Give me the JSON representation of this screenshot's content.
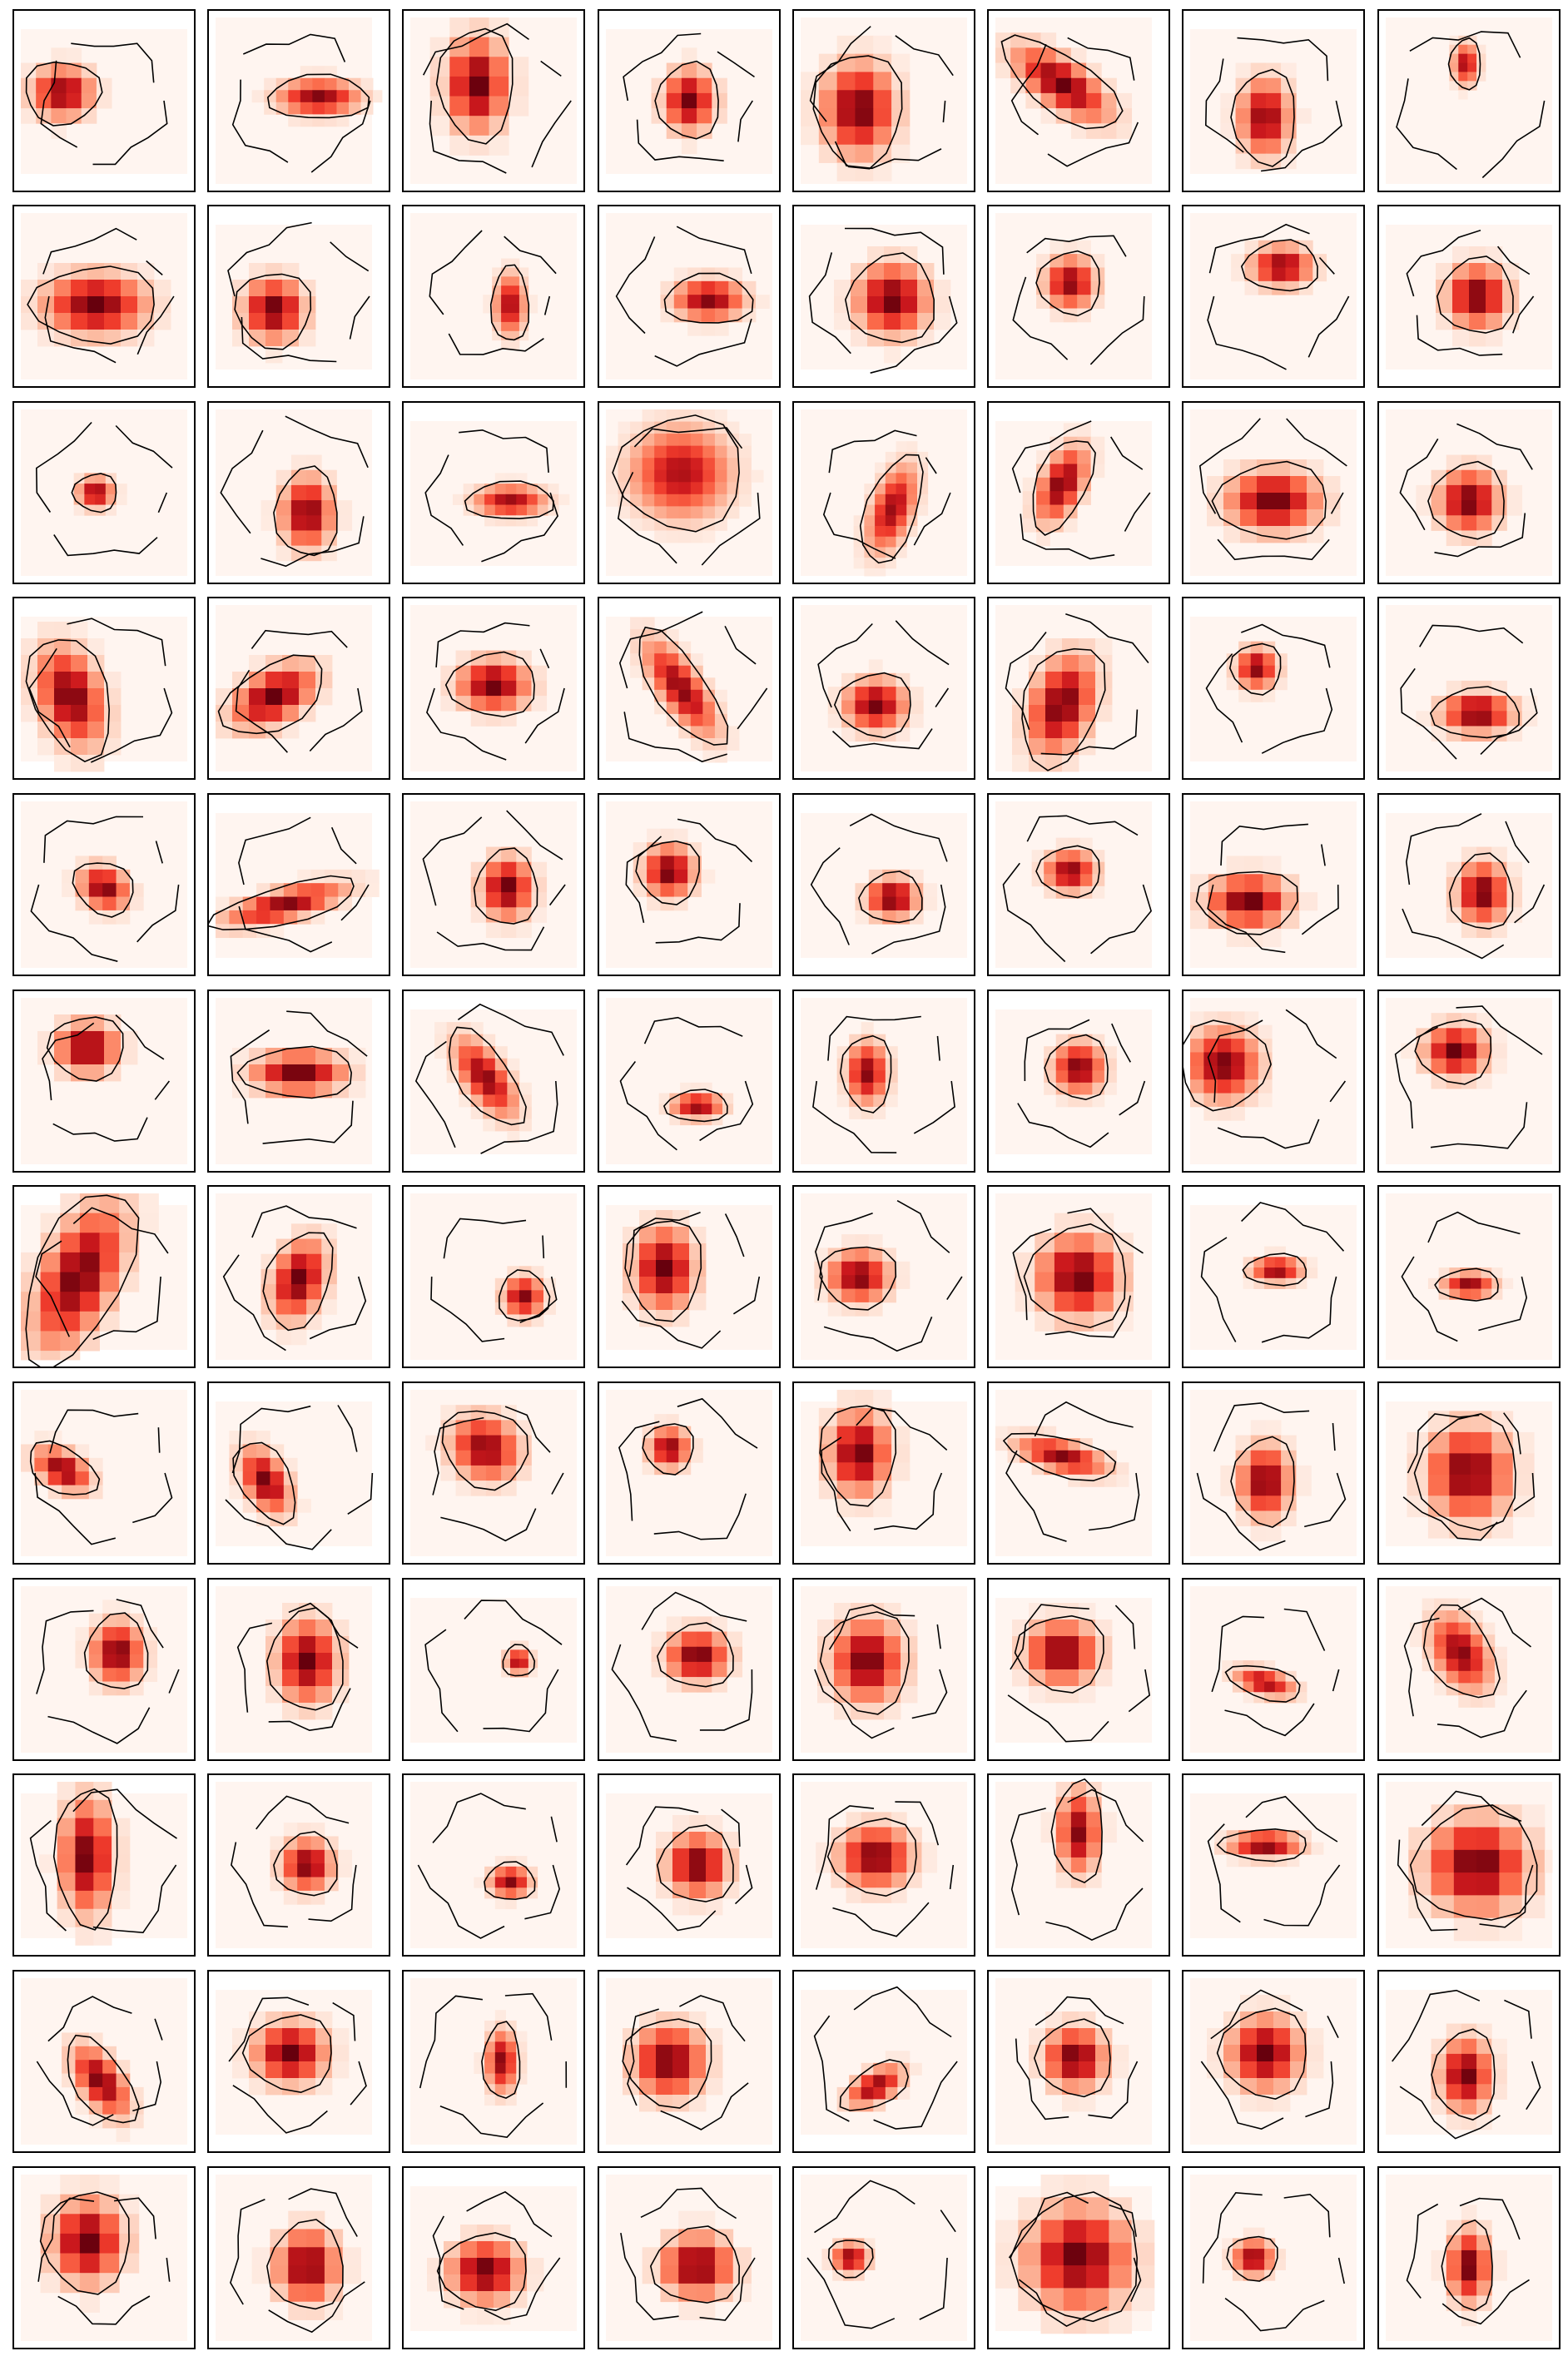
{
  "chart_data": {
    "type": "heatmap",
    "layout": {
      "rows": 12,
      "cols": 8
    },
    "title": "",
    "xlabel": "",
    "ylabel": "",
    "colormap": "Reds",
    "contour_color": "#000000",
    "ticks": "none",
    "panels": [
      {
        "cx": 0.25,
        "cy": 0.45,
        "sx": 0.12,
        "sy": 0.1,
        "angle": 0,
        "peak": 0.95,
        "zoom": 1.0
      },
      {
        "cx": 0.62,
        "cy": 0.48,
        "sx": 0.16,
        "sy": 0.07,
        "angle": 0,
        "peak": 0.95,
        "zoom": 0.8
      },
      {
        "cx": 0.4,
        "cy": 0.4,
        "sx": 0.12,
        "sy": 0.18,
        "angle": 0,
        "peak": 1.0,
        "zoom": 1.3
      },
      {
        "cx": 0.5,
        "cy": 0.5,
        "sx": 0.1,
        "sy": 0.12,
        "angle": 0,
        "peak": 0.98,
        "zoom": 1.0
      },
      {
        "cx": 0.35,
        "cy": 0.55,
        "sx": 0.14,
        "sy": 0.18,
        "angle": 0,
        "peak": 1.0,
        "zoom": 1.2
      },
      {
        "cx": 0.4,
        "cy": 0.4,
        "sx": 0.22,
        "sy": 0.09,
        "angle": 35,
        "peak": 1.0,
        "zoom": 1.0
      },
      {
        "cx": 0.45,
        "cy": 0.6,
        "sx": 0.1,
        "sy": 0.15,
        "angle": 0,
        "peak": 0.95,
        "zoom": 1.0
      },
      {
        "cx": 0.48,
        "cy": 0.28,
        "sx": 0.05,
        "sy": 0.08,
        "angle": 0,
        "peak": 0.9,
        "zoom": 0.6
      },
      {
        "cx": 0.45,
        "cy": 0.55,
        "sx": 0.2,
        "sy": 0.12,
        "angle": 0,
        "peak": 1.0,
        "zoom": 1.1
      },
      {
        "cx": 0.35,
        "cy": 0.58,
        "sx": 0.12,
        "sy": 0.12,
        "angle": 0,
        "peak": 1.0,
        "zoom": 1.1
      },
      {
        "cx": 0.6,
        "cy": 0.55,
        "sx": 0.06,
        "sy": 0.12,
        "angle": 0,
        "peak": 0.9,
        "zoom": 0.6
      },
      {
        "cx": 0.62,
        "cy": 0.52,
        "sx": 0.14,
        "sy": 0.08,
        "angle": 0,
        "peak": 0.95,
        "zoom": 0.9
      },
      {
        "cx": 0.55,
        "cy": 0.52,
        "sx": 0.14,
        "sy": 0.14,
        "angle": 0,
        "peak": 1.0,
        "zoom": 1.1
      },
      {
        "cx": 0.45,
        "cy": 0.42,
        "sx": 0.1,
        "sy": 0.1,
        "angle": 0,
        "peak": 0.95,
        "zoom": 0.9
      },
      {
        "cx": 0.55,
        "cy": 0.32,
        "sx": 0.12,
        "sy": 0.08,
        "angle": 0,
        "peak": 0.95,
        "zoom": 0.9
      },
      {
        "cx": 0.55,
        "cy": 0.5,
        "sx": 0.12,
        "sy": 0.12,
        "angle": 0,
        "peak": 1.0,
        "zoom": 1.1
      },
      {
        "cx": 0.45,
        "cy": 0.5,
        "sx": 0.07,
        "sy": 0.06,
        "angle": 0,
        "peak": 0.95,
        "zoom": 0.7
      },
      {
        "cx": 0.55,
        "cy": 0.62,
        "sx": 0.1,
        "sy": 0.14,
        "angle": 0,
        "peak": 0.98,
        "zoom": 1.0
      },
      {
        "cx": 0.6,
        "cy": 0.55,
        "sx": 0.14,
        "sy": 0.06,
        "angle": 0,
        "peak": 0.9,
        "zoom": 0.7
      },
      {
        "cx": 0.45,
        "cy": 0.38,
        "sx": 0.2,
        "sy": 0.18,
        "angle": 0,
        "peak": 0.85,
        "zoom": 0.8
      },
      {
        "cx": 0.55,
        "cy": 0.6,
        "sx": 0.08,
        "sy": 0.18,
        "angle": 20,
        "peak": 0.9,
        "zoom": 0.7
      },
      {
        "cx": 0.4,
        "cy": 0.45,
        "sx": 0.08,
        "sy": 0.16,
        "angle": 25,
        "peak": 0.98,
        "zoom": 0.9
      },
      {
        "cx": 0.5,
        "cy": 0.55,
        "sx": 0.18,
        "sy": 0.12,
        "angle": 0,
        "peak": 1.0,
        "zoom": 1.1
      },
      {
        "cx": 0.5,
        "cy": 0.55,
        "sx": 0.12,
        "sy": 0.12,
        "angle": 0,
        "peak": 1.0,
        "zoom": 1.0
      },
      {
        "cx": 0.3,
        "cy": 0.55,
        "sx": 0.12,
        "sy": 0.2,
        "angle": -20,
        "peak": 1.0,
        "zoom": 1.1
      },
      {
        "cx": 0.35,
        "cy": 0.55,
        "sx": 0.18,
        "sy": 0.1,
        "angle": -30,
        "peak": 1.0,
        "zoom": 1.1
      },
      {
        "cx": 0.5,
        "cy": 0.48,
        "sx": 0.14,
        "sy": 0.1,
        "angle": 0,
        "peak": 1.0,
        "zoom": 1.0
      },
      {
        "cx": 0.45,
        "cy": 0.5,
        "sx": 0.08,
        "sy": 0.22,
        "angle": -35,
        "peak": 0.95,
        "zoom": 0.8
      },
      {
        "cx": 0.45,
        "cy": 0.6,
        "sx": 0.12,
        "sy": 0.1,
        "angle": 0,
        "peak": 0.98,
        "zoom": 0.9
      },
      {
        "cx": 0.4,
        "cy": 0.6,
        "sx": 0.12,
        "sy": 0.2,
        "angle": 20,
        "peak": 1.0,
        "zoom": 1.1
      },
      {
        "cx": 0.4,
        "cy": 0.38,
        "sx": 0.08,
        "sy": 0.08,
        "angle": 0,
        "peak": 0.95,
        "zoom": 0.8
      },
      {
        "cx": 0.55,
        "cy": 0.65,
        "sx": 0.14,
        "sy": 0.08,
        "angle": 0,
        "peak": 1.0,
        "zoom": 1.0
      },
      {
        "cx": 0.5,
        "cy": 0.52,
        "sx": 0.1,
        "sy": 0.08,
        "angle": 30,
        "peak": 0.98,
        "zoom": 0.9
      },
      {
        "cx": 0.42,
        "cy": 0.62,
        "sx": 0.24,
        "sy": 0.06,
        "angle": -15,
        "peak": 0.95,
        "zoom": 0.9
      },
      {
        "cx": 0.58,
        "cy": 0.52,
        "sx": 0.1,
        "sy": 0.12,
        "angle": 0,
        "peak": 1.0,
        "zoom": 1.0
      },
      {
        "cx": 0.38,
        "cy": 0.42,
        "sx": 0.1,
        "sy": 0.1,
        "angle": 0,
        "peak": 1.0,
        "zoom": 0.9
      },
      {
        "cx": 0.55,
        "cy": 0.58,
        "sx": 0.1,
        "sy": 0.08,
        "angle": 0,
        "peak": 1.0,
        "zoom": 0.9
      },
      {
        "cx": 0.45,
        "cy": 0.42,
        "sx": 0.1,
        "sy": 0.08,
        "angle": 0,
        "peak": 0.95,
        "zoom": 0.8
      },
      {
        "cx": 0.35,
        "cy": 0.6,
        "sx": 0.16,
        "sy": 0.1,
        "angle": 0,
        "peak": 1.0,
        "zoom": 1.2
      },
      {
        "cx": 0.58,
        "cy": 0.55,
        "sx": 0.1,
        "sy": 0.12,
        "angle": 0,
        "peak": 1.0,
        "zoom": 1.0
      },
      {
        "cx": 0.4,
        "cy": 0.3,
        "sx": 0.12,
        "sy": 0.1,
        "angle": 0,
        "peak": 1.0,
        "zoom": 1.1
      },
      {
        "cx": 0.5,
        "cy": 0.45,
        "sx": 0.18,
        "sy": 0.08,
        "angle": 0,
        "peak": 1.0,
        "zoom": 1.1
      },
      {
        "cx": 0.45,
        "cy": 0.48,
        "sx": 0.08,
        "sy": 0.18,
        "angle": -35,
        "peak": 0.95,
        "zoom": 0.8
      },
      {
        "cx": 0.55,
        "cy": 0.65,
        "sx": 0.1,
        "sy": 0.05,
        "angle": 0,
        "peak": 0.95,
        "zoom": 0.7
      },
      {
        "cx": 0.4,
        "cy": 0.45,
        "sx": 0.08,
        "sy": 0.12,
        "angle": 0,
        "peak": 0.95,
        "zoom": 0.8
      },
      {
        "cx": 0.5,
        "cy": 0.42,
        "sx": 0.1,
        "sy": 0.1,
        "angle": 0,
        "peak": 0.98,
        "zoom": 0.8
      },
      {
        "cx": 0.2,
        "cy": 0.4,
        "sx": 0.14,
        "sy": 0.14,
        "angle": 0,
        "peak": 0.98,
        "zoom": 0.9
      },
      {
        "cx": 0.42,
        "cy": 0.32,
        "sx": 0.12,
        "sy": 0.1,
        "angle": 0,
        "peak": 1.0,
        "zoom": 1.0
      },
      {
        "cx": 0.35,
        "cy": 0.5,
        "sx": 0.14,
        "sy": 0.3,
        "angle": 25,
        "peak": 1.0,
        "zoom": 1.3
      },
      {
        "cx": 0.5,
        "cy": 0.52,
        "sx": 0.1,
        "sy": 0.16,
        "angle": 20,
        "peak": 1.0,
        "zoom": 1.0
      },
      {
        "cx": 0.68,
        "cy": 0.62,
        "sx": 0.08,
        "sy": 0.08,
        "angle": 0,
        "peak": 0.95,
        "zoom": 0.8
      },
      {
        "cx": 0.35,
        "cy": 0.45,
        "sx": 0.12,
        "sy": 0.16,
        "angle": 0,
        "peak": 1.0,
        "zoom": 1.1
      },
      {
        "cx": 0.35,
        "cy": 0.5,
        "sx": 0.12,
        "sy": 0.1,
        "angle": 0,
        "peak": 0.98,
        "zoom": 0.9
      },
      {
        "cx": 0.5,
        "cy": 0.5,
        "sx": 0.16,
        "sy": 0.16,
        "angle": 0,
        "peak": 1.0,
        "zoom": 1.3
      },
      {
        "cx": 0.52,
        "cy": 0.46,
        "sx": 0.1,
        "sy": 0.05,
        "angle": 0,
        "peak": 0.95,
        "zoom": 0.7
      },
      {
        "cx": 0.5,
        "cy": 0.55,
        "sx": 0.1,
        "sy": 0.05,
        "angle": 0,
        "peak": 0.95,
        "zoom": 0.7
      },
      {
        "cx": 0.25,
        "cy": 0.48,
        "sx": 0.12,
        "sy": 0.07,
        "angle": 30,
        "peak": 0.98,
        "zoom": 0.9
      },
      {
        "cx": 0.3,
        "cy": 0.55,
        "sx": 0.08,
        "sy": 0.14,
        "angle": -30,
        "peak": 0.98,
        "zoom": 0.9
      },
      {
        "cx": 0.45,
        "cy": 0.35,
        "sx": 0.14,
        "sy": 0.12,
        "angle": 30,
        "peak": 0.95,
        "zoom": 1.0
      },
      {
        "cx": 0.38,
        "cy": 0.35,
        "sx": 0.08,
        "sy": 0.08,
        "angle": 0,
        "peak": 0.95,
        "zoom": 0.8
      },
      {
        "cx": 0.35,
        "cy": 0.38,
        "sx": 0.12,
        "sy": 0.16,
        "angle": 0,
        "peak": 1.0,
        "zoom": 1.2
      },
      {
        "cx": 0.4,
        "cy": 0.4,
        "sx": 0.18,
        "sy": 0.06,
        "angle": 15,
        "peak": 0.95,
        "zoom": 0.8
      },
      {
        "cx": 0.45,
        "cy": 0.55,
        "sx": 0.1,
        "sy": 0.14,
        "angle": 0,
        "peak": 1.0,
        "zoom": 1.0
      },
      {
        "cx": 0.5,
        "cy": 0.5,
        "sx": 0.16,
        "sy": 0.18,
        "angle": 0,
        "peak": 1.0,
        "zoom": 1.4
      },
      {
        "cx": 0.58,
        "cy": 0.4,
        "sx": 0.1,
        "sy": 0.12,
        "angle": 0,
        "peak": 1.0,
        "zoom": 0.9
      },
      {
        "cx": 0.55,
        "cy": 0.45,
        "sx": 0.12,
        "sy": 0.16,
        "angle": 0,
        "peak": 1.0,
        "zoom": 1.1
      },
      {
        "cx": 0.65,
        "cy": 0.45,
        "sx": 0.05,
        "sy": 0.05,
        "angle": 0,
        "peak": 0.9,
        "zoom": 0.6
      },
      {
        "cx": 0.55,
        "cy": 0.42,
        "sx": 0.12,
        "sy": 0.1,
        "angle": 0,
        "peak": 1.0,
        "zoom": 1.0
      },
      {
        "cx": 0.4,
        "cy": 0.45,
        "sx": 0.14,
        "sy": 0.16,
        "angle": 0,
        "peak": 1.0,
        "zoom": 1.1
      },
      {
        "cx": 0.4,
        "cy": 0.4,
        "sx": 0.14,
        "sy": 0.12,
        "angle": 0,
        "peak": 1.0,
        "zoom": 1.1
      },
      {
        "cx": 0.45,
        "cy": 0.58,
        "sx": 0.12,
        "sy": 0.05,
        "angle": 15,
        "peak": 0.9,
        "zoom": 0.7
      },
      {
        "cx": 0.45,
        "cy": 0.4,
        "sx": 0.1,
        "sy": 0.16,
        "angle": -30,
        "peak": 0.95,
        "zoom": 0.8
      },
      {
        "cx": 0.4,
        "cy": 0.45,
        "sx": 0.1,
        "sy": 0.22,
        "angle": 0,
        "peak": 1.0,
        "zoom": 1.2
      },
      {
        "cx": 0.55,
        "cy": 0.5,
        "sx": 0.1,
        "sy": 0.1,
        "angle": 0,
        "peak": 0.98,
        "zoom": 0.9
      },
      {
        "cx": 0.6,
        "cy": 0.6,
        "sx": 0.08,
        "sy": 0.06,
        "angle": 0,
        "peak": 0.95,
        "zoom": 0.7
      },
      {
        "cx": 0.55,
        "cy": 0.5,
        "sx": 0.12,
        "sy": 0.12,
        "angle": 0,
        "peak": 1.0,
        "zoom": 1.1
      },
      {
        "cx": 0.45,
        "cy": 0.45,
        "sx": 0.14,
        "sy": 0.12,
        "angle": 0,
        "peak": 1.0,
        "zoom": 1.0
      },
      {
        "cx": 0.5,
        "cy": 0.3,
        "sx": 0.08,
        "sy": 0.16,
        "angle": 0,
        "peak": 0.95,
        "zoom": 1.0
      },
      {
        "cx": 0.45,
        "cy": 0.38,
        "sx": 0.14,
        "sy": 0.05,
        "angle": 0,
        "peak": 1.0,
        "zoom": 0.8
      },
      {
        "cx": 0.55,
        "cy": 0.5,
        "sx": 0.2,
        "sy": 0.18,
        "angle": 0,
        "peak": 1.0,
        "zoom": 1.5
      },
      {
        "cx": 0.48,
        "cy": 0.62,
        "sx": 0.08,
        "sy": 0.16,
        "angle": -35,
        "peak": 0.98,
        "zoom": 0.9
      },
      {
        "cx": 0.45,
        "cy": 0.45,
        "sx": 0.14,
        "sy": 0.12,
        "angle": 0,
        "peak": 1.0,
        "zoom": 1.1
      },
      {
        "cx": 0.55,
        "cy": 0.5,
        "sx": 0.06,
        "sy": 0.12,
        "angle": 0,
        "peak": 0.95,
        "zoom": 0.7
      },
      {
        "cx": 0.38,
        "cy": 0.5,
        "sx": 0.14,
        "sy": 0.14,
        "angle": 0,
        "peak": 1.0,
        "zoom": 1.1
      },
      {
        "cx": 0.45,
        "cy": 0.65,
        "sx": 0.12,
        "sy": 0.06,
        "angle": -30,
        "peak": 0.95,
        "zoom": 0.8
      },
      {
        "cx": 0.48,
        "cy": 0.48,
        "sx": 0.12,
        "sy": 0.12,
        "angle": 0,
        "peak": 1.0,
        "zoom": 1.1
      },
      {
        "cx": 0.45,
        "cy": 0.45,
        "sx": 0.14,
        "sy": 0.14,
        "angle": 0,
        "peak": 1.0,
        "zoom": 1.1
      },
      {
        "cx": 0.48,
        "cy": 0.58,
        "sx": 0.1,
        "sy": 0.14,
        "angle": 0,
        "peak": 1.0,
        "zoom": 1.0
      },
      {
        "cx": 0.4,
        "cy": 0.4,
        "sx": 0.14,
        "sy": 0.16,
        "angle": 0,
        "peak": 1.0,
        "zoom": 1.3
      },
      {
        "cx": 0.55,
        "cy": 0.55,
        "sx": 0.12,
        "sy": 0.14,
        "angle": 0,
        "peak": 1.0,
        "zoom": 1.2
      },
      {
        "cx": 0.45,
        "cy": 0.58,
        "sx": 0.14,
        "sy": 0.12,
        "angle": 0,
        "peak": 1.0,
        "zoom": 1.1
      },
      {
        "cx": 0.55,
        "cy": 0.55,
        "sx": 0.14,
        "sy": 0.12,
        "angle": 0,
        "peak": 1.0,
        "zoom": 1.2
      },
      {
        "cx": 0.3,
        "cy": 0.5,
        "sx": 0.07,
        "sy": 0.06,
        "angle": 0,
        "peak": 0.95,
        "zoom": 0.7
      },
      {
        "cx": 0.5,
        "cy": 0.5,
        "sx": 0.2,
        "sy": 0.2,
        "angle": 0,
        "peak": 1.0,
        "zoom": 1.5
      },
      {
        "cx": 0.38,
        "cy": 0.5,
        "sx": 0.08,
        "sy": 0.07,
        "angle": 0,
        "peak": 0.95,
        "zoom": 0.7
      },
      {
        "cx": 0.5,
        "cy": 0.55,
        "sx": 0.08,
        "sy": 0.14,
        "angle": 0,
        "peak": 1.0,
        "zoom": 1.0
      }
    ]
  }
}
